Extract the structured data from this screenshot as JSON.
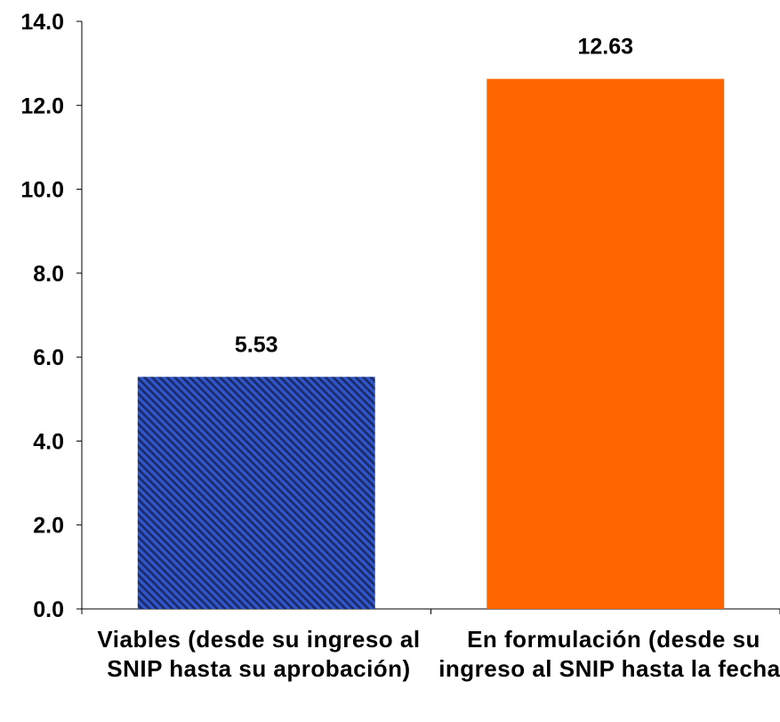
{
  "chart_data": {
    "type": "bar",
    "categories": [
      "Viables (desde su ingreso al SNIP hasta su aprobación)",
      "En formulación (desde su ingreso al SNIP hasta la fecha)"
    ],
    "values": [
      5.53,
      12.63
    ],
    "value_labels": [
      "5.53",
      "12.63"
    ],
    "ylim": [
      0,
      14
    ],
    "y_ticks": [
      0,
      2,
      4,
      6,
      8,
      10,
      12,
      14
    ],
    "y_tick_labels": [
      "0.0",
      "2.0",
      "4.0",
      "6.0",
      "8.0",
      "10.0",
      "12.0",
      "14.0"
    ],
    "grid": false,
    "legend": "none",
    "bar_styles": [
      {
        "fill": "#2f55c8",
        "pattern": "diagonal-stripes",
        "stripe_color": "#1a2a66"
      },
      {
        "fill": "#ff6600",
        "pattern": "solid"
      }
    ]
  }
}
